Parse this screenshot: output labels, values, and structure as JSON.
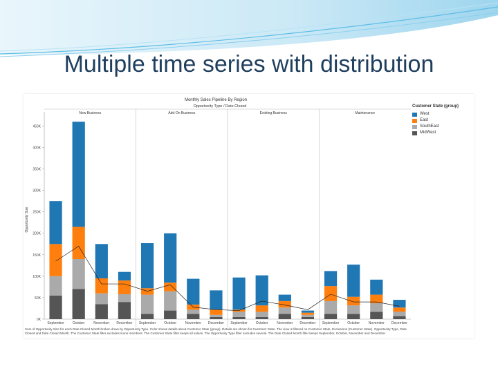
{
  "slide": {
    "title": "Multiple time series with distribution"
  },
  "chart_data": {
    "type": "bar",
    "stacked": true,
    "title": "Monthly Sales Pipeline By Region",
    "subtitle": "Opportunity Type / Date Closed",
    "ylabel": "Opportunity Size",
    "ylim": [
      0,
      470000
    ],
    "yticks": [
      0,
      50000,
      100000,
      150000,
      200000,
      250000,
      300000,
      350000,
      400000,
      450000
    ],
    "ytick_labels": [
      "0K",
      "50K",
      "100K",
      "150K",
      "200K",
      "250K",
      "300K",
      "350K",
      "400K",
      "450K"
    ],
    "panels": [
      {
        "name": "New Business",
        "months": [
          "September",
          "October",
          "November",
          "December"
        ]
      },
      {
        "name": "Add-On Business",
        "months": [
          "September",
          "October",
          "November",
          "December"
        ]
      },
      {
        "name": "Existing Business",
        "months": [
          "September",
          "October",
          "November",
          "December"
        ]
      },
      {
        "name": "Maintenance",
        "months": [
          "September",
          "October",
          "November",
          "December"
        ]
      }
    ],
    "series": [
      {
        "name": "West",
        "color": "#1f77b4",
        "values": [
          100000,
          245000,
          80000,
          20000,
          105000,
          115000,
          60000,
          45000,
          75000,
          70000,
          15000,
          5000,
          35000,
          75000,
          35000,
          18000
        ]
      },
      {
        "name": "East",
        "color": "#ff7f0e",
        "values": [
          75000,
          75000,
          35000,
          32000,
          15000,
          20000,
          12000,
          12000,
          5000,
          15000,
          15000,
          5000,
          35000,
          20000,
          20000,
          10000
        ]
      },
      {
        "name": "SouthEast",
        "color": "#aaaaaa",
        "values": [
          45000,
          70000,
          25000,
          18000,
          45000,
          45000,
          10000,
          5000,
          12000,
          12000,
          15000,
          5000,
          30000,
          20000,
          20000,
          10000
        ]
      },
      {
        "name": "MidWest",
        "color": "#555555",
        "values": [
          55000,
          70000,
          35000,
          40000,
          12000,
          20000,
          12000,
          5000,
          5000,
          5000,
          12000,
          5000,
          12000,
          12000,
          17000,
          7000
        ]
      }
    ],
    "trend_line": [
      135000,
      170000,
      82000,
      82000,
      65000,
      80000,
      28000,
      22000,
      20000,
      42000,
      33000,
      22000,
      58000,
      40000,
      40000,
      30000
    ],
    "legend_title": "Customer State (group)",
    "legend_position": "right",
    "grid": false
  },
  "caption": "Sum of Opportunity Size for each Date Closed Month broken down by Opportunity Type. Color shows details about Customer State (group). Details are shown for Customer State. The view is filtered on Customer State, Exclusions (Customer State), Opportunity Type, Date Closed and Date Closed Month. The Customer State filter excludes some members. The Customer State filter keeps all values. The Opportunity Type filter excludes several. The Date Closed Month filter keeps September, October, November and December."
}
